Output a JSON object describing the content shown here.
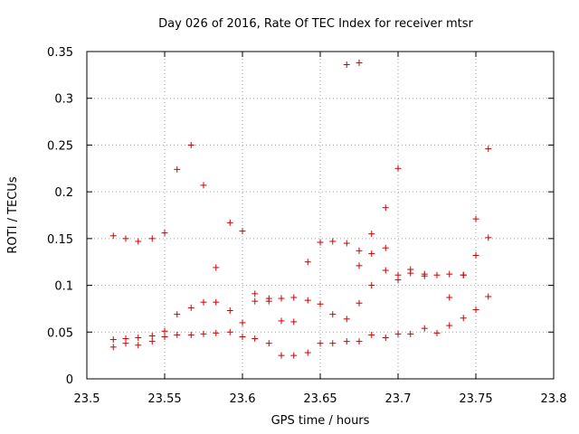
{
  "chart_data": {
    "type": "scatter",
    "title": "Day 026 of 2016, Rate Of TEC Index for receiver mtsr",
    "xlabel": "GPS time / hours",
    "ylabel": "ROTI / TECUs",
    "xlim": [
      23.5,
      23.8
    ],
    "ylim": [
      0,
      0.35
    ],
    "xticks": [
      23.5,
      23.55,
      23.6,
      23.65,
      23.7,
      23.75,
      23.8
    ],
    "xtick_labels": [
      "23.5",
      "23.55",
      "23.6",
      "23.65",
      "23.7",
      "23.75",
      "23.8"
    ],
    "yticks": [
      0,
      0.05,
      0.1,
      0.15,
      0.2,
      0.25,
      0.3,
      0.35
    ],
    "ytick_labels": [
      "0",
      "0.05",
      "0.1",
      "0.15",
      "0.2",
      "0.25",
      "0.3",
      "0.35"
    ],
    "grid": true,
    "marker": "+",
    "color": "#cc0000",
    "series": [
      {
        "name": "ROTI",
        "points": [
          [
            23.517,
            0.153
          ],
          [
            23.517,
            0.042
          ],
          [
            23.517,
            0.034
          ],
          [
            23.525,
            0.15
          ],
          [
            23.525,
            0.043
          ],
          [
            23.525,
            0.038
          ],
          [
            23.533,
            0.147
          ],
          [
            23.533,
            0.044
          ],
          [
            23.533,
            0.036
          ],
          [
            23.542,
            0.15
          ],
          [
            23.542,
            0.046
          ],
          [
            23.542,
            0.04
          ],
          [
            23.55,
            0.156
          ],
          [
            23.55,
            0.051
          ],
          [
            23.55,
            0.045
          ],
          [
            23.558,
            0.224
          ],
          [
            23.558,
            0.069
          ],
          [
            23.558,
            0.047
          ],
          [
            23.567,
            0.25
          ],
          [
            23.567,
            0.076
          ],
          [
            23.567,
            0.047
          ],
          [
            23.575,
            0.207
          ],
          [
            23.575,
            0.082
          ],
          [
            23.575,
            0.048
          ],
          [
            23.583,
            0.119
          ],
          [
            23.583,
            0.082
          ],
          [
            23.583,
            0.049
          ],
          [
            23.592,
            0.167
          ],
          [
            23.592,
            0.073
          ],
          [
            23.592,
            0.05
          ],
          [
            23.6,
            0.158
          ],
          [
            23.6,
            0.06
          ],
          [
            23.6,
            0.045
          ],
          [
            23.608,
            0.091
          ],
          [
            23.608,
            0.083
          ],
          [
            23.608,
            0.043
          ],
          [
            23.617,
            0.086
          ],
          [
            23.617,
            0.083
          ],
          [
            23.617,
            0.038
          ],
          [
            23.625,
            0.086
          ],
          [
            23.625,
            0.062
          ],
          [
            23.625,
            0.025
          ],
          [
            23.633,
            0.087
          ],
          [
            23.633,
            0.061
          ],
          [
            23.633,
            0.025
          ],
          [
            23.642,
            0.125
          ],
          [
            23.642,
            0.084
          ],
          [
            23.642,
            0.028
          ],
          [
            23.65,
            0.146
          ],
          [
            23.65,
            0.08
          ],
          [
            23.65,
            0.038
          ],
          [
            23.658,
            0.147
          ],
          [
            23.658,
            0.069
          ],
          [
            23.658,
            0.038
          ],
          [
            23.667,
            0.336
          ],
          [
            23.667,
            0.145
          ],
          [
            23.667,
            0.064
          ],
          [
            23.667,
            0.04
          ],
          [
            23.675,
            0.338
          ],
          [
            23.675,
            0.137
          ],
          [
            23.675,
            0.121
          ],
          [
            23.675,
            0.081
          ],
          [
            23.675,
            0.04
          ],
          [
            23.683,
            0.155
          ],
          [
            23.683,
            0.134
          ],
          [
            23.683,
            0.1
          ],
          [
            23.683,
            0.047
          ],
          [
            23.692,
            0.183
          ],
          [
            23.692,
            0.14
          ],
          [
            23.692,
            0.116
          ],
          [
            23.692,
            0.044
          ],
          [
            23.7,
            0.225
          ],
          [
            23.7,
            0.111
          ],
          [
            23.7,
            0.106
          ],
          [
            23.7,
            0.048
          ],
          [
            23.708,
            0.117
          ],
          [
            23.708,
            0.113
          ],
          [
            23.708,
            0.048
          ],
          [
            23.717,
            0.112
          ],
          [
            23.717,
            0.11
          ],
          [
            23.717,
            0.054
          ],
          [
            23.725,
            0.111
          ],
          [
            23.725,
            0.049
          ],
          [
            23.733,
            0.112
          ],
          [
            23.733,
            0.087
          ],
          [
            23.733,
            0.057
          ],
          [
            23.742,
            0.111
          ],
          [
            23.742,
            0.111
          ],
          [
            23.742,
            0.065
          ],
          [
            23.75,
            0.171
          ],
          [
            23.75,
            0.132
          ],
          [
            23.75,
            0.074
          ],
          [
            23.758,
            0.246
          ],
          [
            23.758,
            0.151
          ],
          [
            23.758,
            0.088
          ]
        ]
      }
    ]
  }
}
